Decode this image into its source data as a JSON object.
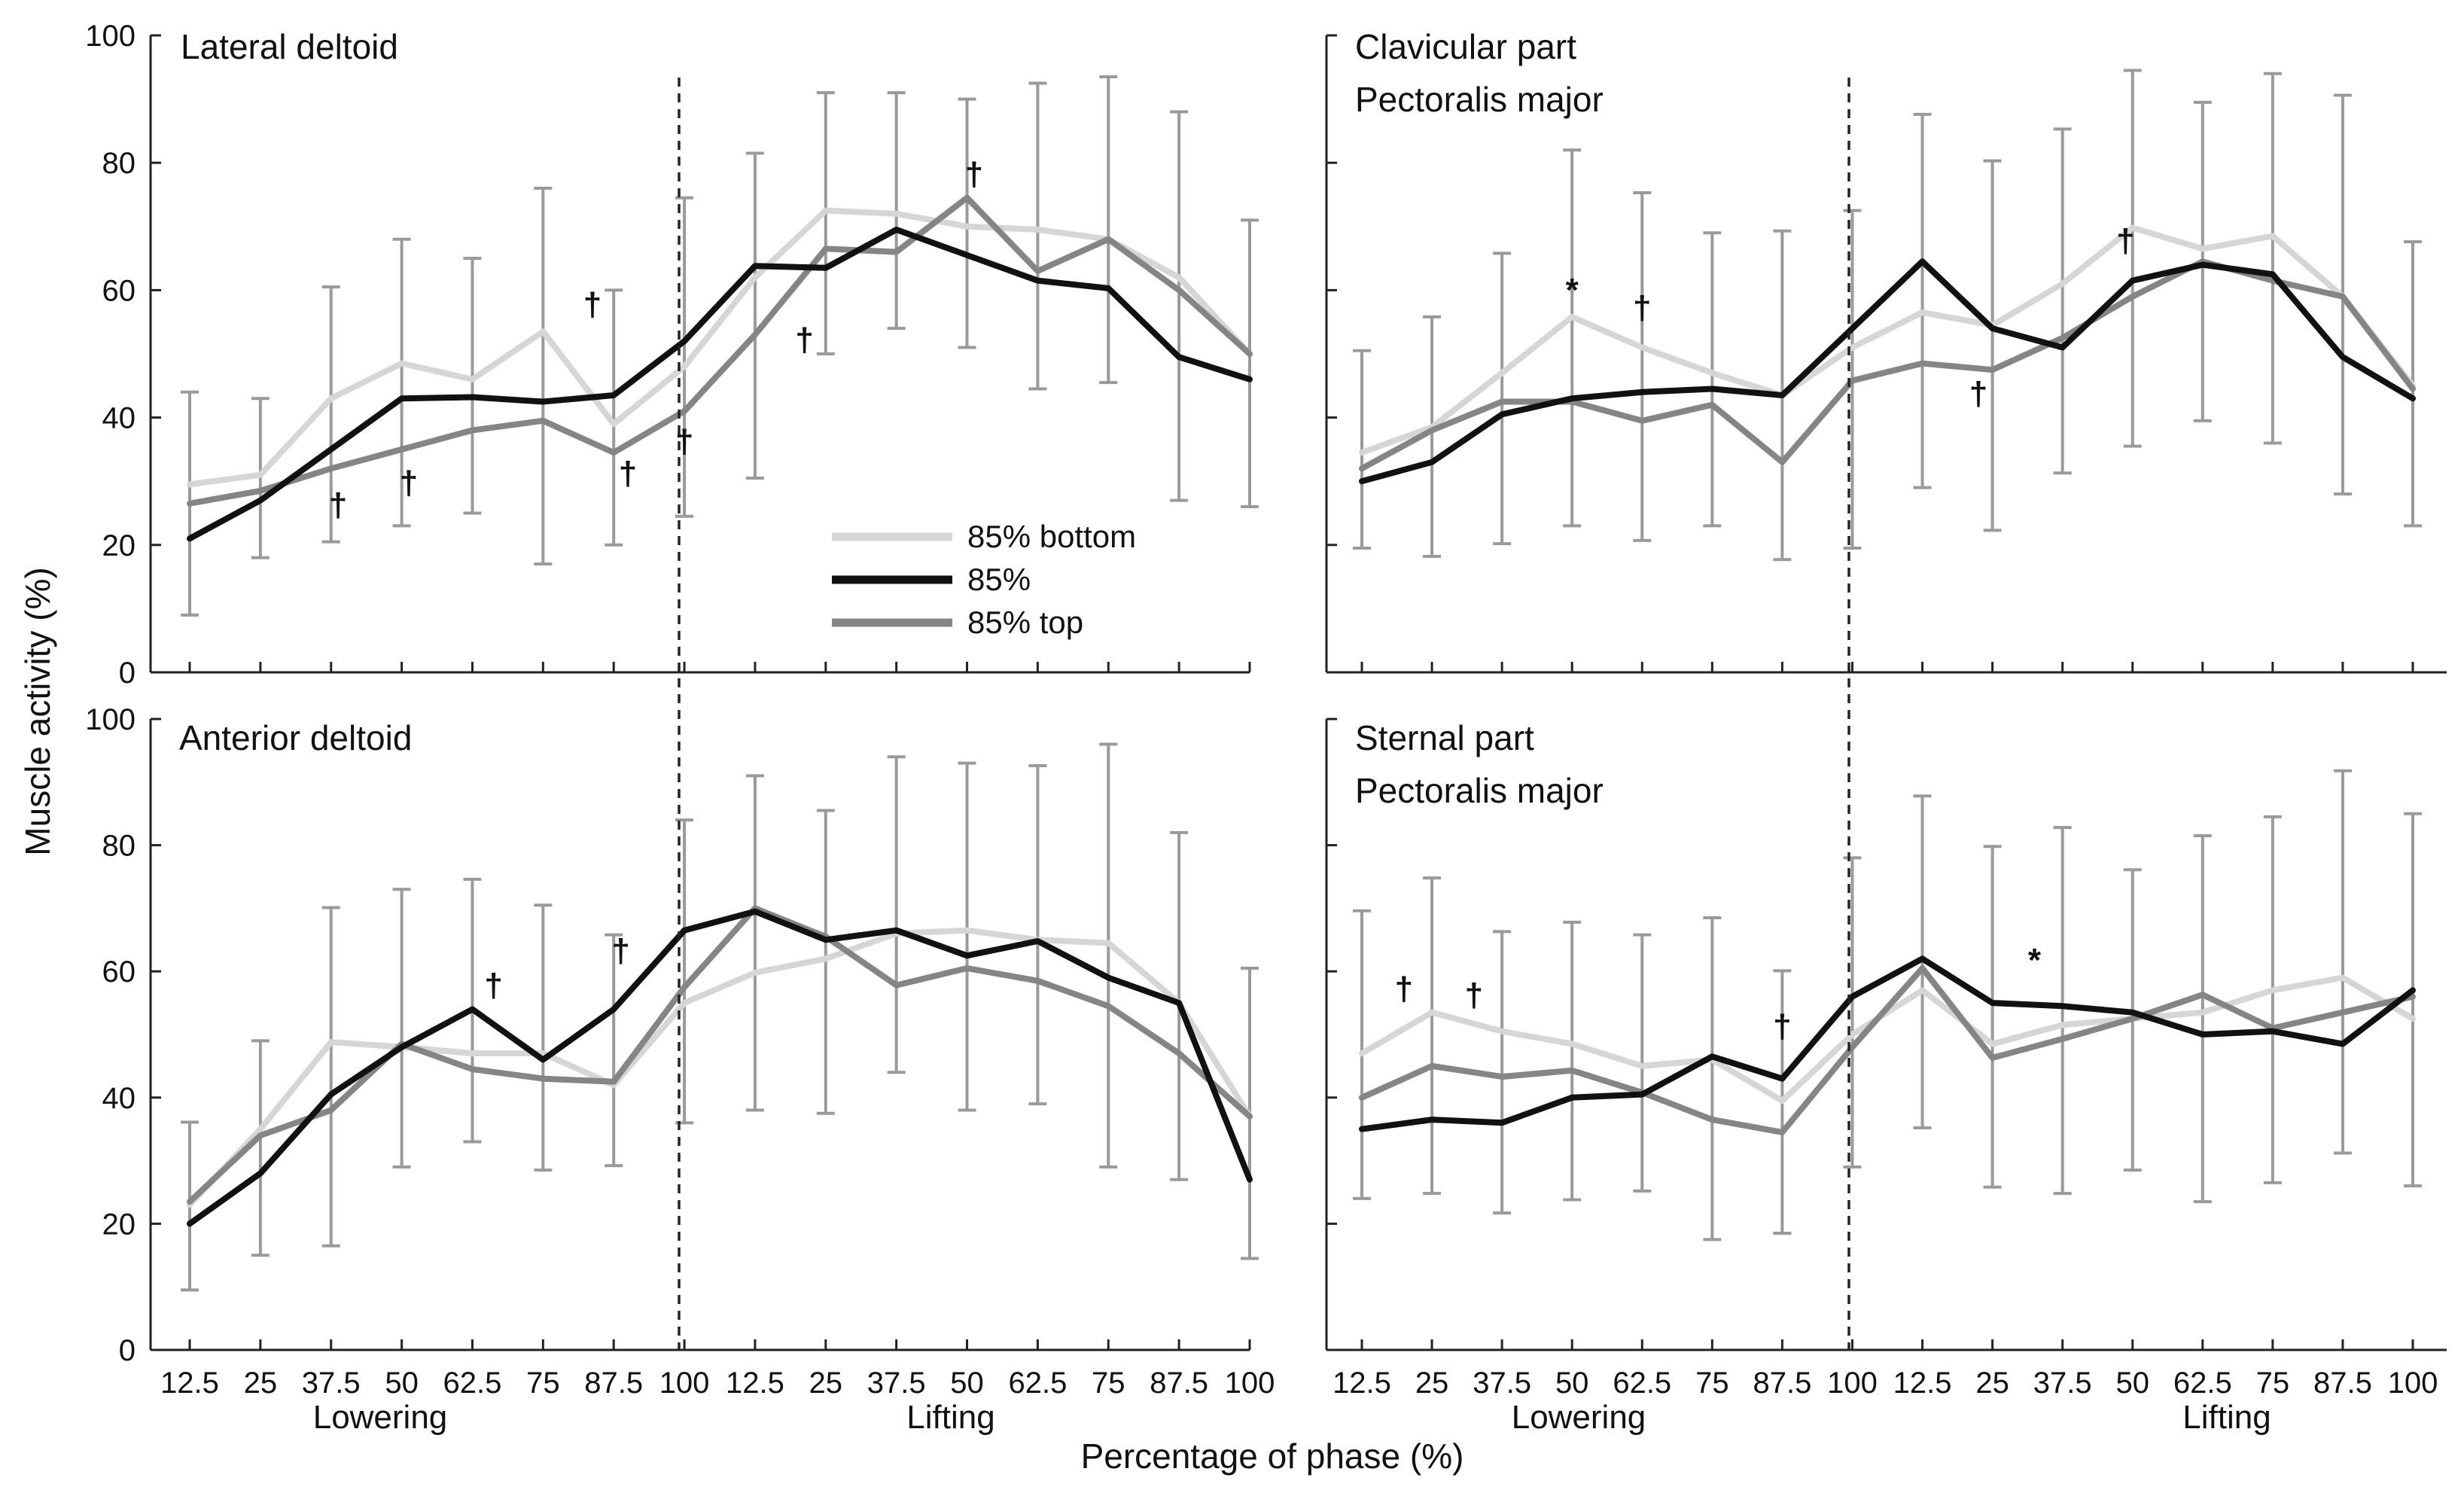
{
  "chart_data": {
    "type": "line",
    "ylabel": "Muscle activity (%)",
    "xlabel": "Percentage of phase (%)",
    "ylim": [
      0,
      100
    ],
    "yticks": [
      0,
      20,
      40,
      60,
      80,
      100
    ],
    "x_tick_labels": [
      "12.5",
      "25",
      "37.5",
      "50",
      "62.5",
      "75",
      "87.5",
      "100",
      "12.5",
      "25",
      "37.5",
      "50",
      "62.5",
      "75",
      "87.5",
      "100"
    ],
    "phase_labels": [
      "Lowering",
      "Lifting"
    ],
    "series_styles": [
      {
        "name": "85% bottom",
        "color": "#d6d6d6"
      },
      {
        "name": "85%",
        "color": "#111111"
      },
      {
        "name": "85% top",
        "color": "#858585"
      }
    ],
    "panels": [
      {
        "title_lines": [
          "Lateral deltoid"
        ],
        "series": [
          {
            "name": "85% bottom",
            "values": [
              29.5,
              31,
              43,
              48.5,
              46,
              53.5,
              39,
              48,
              62,
              72.5,
              72,
              70,
              69.5,
              68,
              62,
              50
            ]
          },
          {
            "name": "85%",
            "values": [
              21,
              27,
              35,
              43,
              43.2,
              42.5,
              43.5,
              52,
              63.8,
              63.5,
              69.5,
              65.5,
              61.5,
              60.3,
              49.5,
              46
            ]
          },
          {
            "name": "85% top",
            "values": [
              26.5,
              28.5,
              32,
              35,
              38,
              39.5,
              34.5,
              41,
              53,
              66.5,
              66,
              74.5,
              63,
              68,
              60,
              50
            ]
          }
        ],
        "error_bars": [
          {
            "center": 26.5,
            "half": 17.5
          },
          {
            "center": 30.5,
            "half": 12.5
          },
          {
            "center": 40.5,
            "half": 20
          },
          {
            "center": 45.5,
            "half": 22.5
          },
          {
            "center": 45,
            "half": 20
          },
          {
            "center": 46.5,
            "half": 29.5
          },
          {
            "center": 40,
            "half": 20
          },
          {
            "center": 49.5,
            "half": 25
          },
          {
            "center": 56,
            "half": 25.5
          },
          {
            "center": 70.5,
            "half": 20.5
          },
          {
            "center": 72.5,
            "half": 18.5
          },
          {
            "center": 70.5,
            "half": 19.5
          },
          {
            "center": 68.5,
            "half": 24
          },
          {
            "center": 69.5,
            "half": 24
          },
          {
            "center": 57.5,
            "half": 30.5
          },
          {
            "center": 48.5,
            "half": 22.5
          }
        ],
        "markers": [
          {
            "text": "†",
            "index": 2.1,
            "value": 24.5
          },
          {
            "text": "†",
            "index": 3.1,
            "value": 28
          },
          {
            "text": "†",
            "index": 5.7,
            "value": 56
          },
          {
            "text": "†",
            "index": 6.2,
            "value": 29.5
          },
          {
            "text": "†",
            "index": 7.0,
            "value": 34.5
          },
          {
            "text": "†",
            "index": 8.7,
            "value": 50.5
          },
          {
            "text": "†",
            "index": 11.1,
            "value": 76.5
          }
        ]
      },
      {
        "title_lines": [
          "Clavicular part",
          "Pectoralis major"
        ],
        "series": [
          {
            "name": "85% bottom",
            "values": [
              34.5,
              38.5,
              47,
              55.8,
              51,
              47,
              43.5,
              51,
              56.5,
              54.5,
              61,
              69.8,
              66.5,
              68.5,
              59,
              45
            ]
          },
          {
            "name": "85%",
            "values": [
              30,
              33,
              40.5,
              43,
              44,
              44.5,
              43.5,
              54,
              64.5,
              54,
              51,
              61.5,
              64,
              62.5,
              49.5,
              43
            ]
          },
          {
            "name": "85% top",
            "values": [
              32,
              38,
              42.5,
              42.5,
              39.5,
              42,
              33,
              45.8,
              48.5,
              47.5,
              52.5,
              59,
              64.5,
              61.5,
              59,
              44.5
            ]
          }
        ],
        "error_bars": [
          {
            "center": 35,
            "half": 15.5
          },
          {
            "center": 37,
            "half": 18.8
          },
          {
            "center": 43,
            "half": 22.8
          },
          {
            "center": 52.5,
            "half": 29.5
          },
          {
            "center": 48,
            "half": 27.3
          },
          {
            "center": 46,
            "half": 23
          },
          {
            "center": 43.5,
            "half": 25.8
          },
          {
            "center": 46,
            "half": 26.5
          },
          {
            "center": 58.3,
            "half": 29.3
          },
          {
            "center": 51.3,
            "half": 29
          },
          {
            "center": 58.3,
            "half": 27
          },
          {
            "center": 65,
            "half": 29.5
          },
          {
            "center": 64.5,
            "half": 25
          },
          {
            "center": 65,
            "half": 29
          },
          {
            "center": 59.3,
            "half": 31.3
          },
          {
            "center": 45.3,
            "half": 22.3
          }
        ],
        "markers": [
          {
            "text": "*",
            "index": 3.0,
            "value": 58.3
          },
          {
            "text": "†",
            "index": 4.0,
            "value": 55.5
          },
          {
            "text": "†",
            "index": 8.8,
            "value": 42
          },
          {
            "text": "†",
            "index": 10.9,
            "value": 66
          }
        ]
      },
      {
        "title_lines": [
          "Anterior deltoid"
        ],
        "series": [
          {
            "name": "85% bottom",
            "values": [
              23,
              35,
              48.8,
              48,
              47,
              47,
              42,
              55,
              59.8,
              62,
              66,
              66.5,
              65,
              64.5,
              55,
              37
            ]
          },
          {
            "name": "85%",
            "values": [
              20,
              28,
              40.5,
              48,
              54,
              46,
              54,
              66.5,
              69.5,
              65,
              66.5,
              62.5,
              64.8,
              59,
              55,
              27
            ]
          },
          {
            "name": "85% top",
            "values": [
              23.5,
              34,
              38,
              48.5,
              44.5,
              43,
              42.5,
              57.5,
              70,
              65.5,
              57.8,
              60.5,
              58.5,
              54.5,
              47,
              37
            ]
          }
        ],
        "error_bars": [
          {
            "center": 22.8,
            "half": 13.3
          },
          {
            "center": 32,
            "half": 17
          },
          {
            "center": 43.3,
            "half": 26.8
          },
          {
            "center": 51,
            "half": 22
          },
          {
            "center": 53.8,
            "half": 20.8
          },
          {
            "center": 49.5,
            "half": 21
          },
          {
            "center": 47.5,
            "half": 18.3
          },
          {
            "center": 60,
            "half": 24
          },
          {
            "center": 64.5,
            "half": 26.5
          },
          {
            "center": 61.5,
            "half": 24
          },
          {
            "center": 69,
            "half": 25
          },
          {
            "center": 65.5,
            "half": 27.5
          },
          {
            "center": 65.8,
            "half": 26.8
          },
          {
            "center": 62.5,
            "half": 33.5
          },
          {
            "center": 54.5,
            "half": 27.5
          },
          {
            "center": 37.5,
            "half": 23
          }
        ],
        "markers": [
          {
            "text": "†",
            "index": 4.3,
            "value": 56
          },
          {
            "text": "†",
            "index": 6.1,
            "value": 61.5
          }
        ]
      },
      {
        "title_lines": [
          "Sternal part",
          "Pectoralis major"
        ],
        "series": [
          {
            "name": "85% bottom",
            "values": [
              47,
              53.5,
              50.5,
              48.5,
              45,
              46,
              39.5,
              50,
              57,
              48.5,
              51.5,
              52.5,
              53.5,
              57,
              59,
              52.5
            ]
          },
          {
            "name": "85%",
            "values": [
              35,
              36.5,
              36,
              40,
              40.5,
              46.5,
              43,
              56,
              62,
              55,
              54.5,
              53.5,
              50,
              50.5,
              48.5,
              57
            ]
          },
          {
            "name": "85% top",
            "values": [
              40,
              45,
              43.3,
              44.3,
              40.8,
              36.5,
              34.5,
              48,
              60.5,
              46.3,
              49.3,
              52.5,
              56.3,
              51,
              53.5,
              56
            ]
          }
        ],
        "error_bars": [
          {
            "center": 46.8,
            "half": 22.8
          },
          {
            "center": 49.8,
            "half": 25
          },
          {
            "center": 44,
            "half": 22.3
          },
          {
            "center": 45.8,
            "half": 22
          },
          {
            "center": 45.5,
            "half": 20.3
          },
          {
            "center": 43,
            "half": 25.5
          },
          {
            "center": 39.3,
            "half": 20.8
          },
          {
            "center": 53.5,
            "half": 24.5
          },
          {
            "center": 61.5,
            "half": 26.3
          },
          {
            "center": 52.8,
            "half": 27
          },
          {
            "center": 53.8,
            "half": 29
          },
          {
            "center": 52.3,
            "half": 23.8
          },
          {
            "center": 52.5,
            "half": 29
          },
          {
            "center": 55.5,
            "half": 29
          },
          {
            "center": 61.5,
            "half": 30.3
          },
          {
            "center": 55.5,
            "half": 29.5
          }
        ],
        "markers": [
          {
            "text": "†",
            "index": 0.6,
            "value": 55.5
          },
          {
            "text": "†",
            "index": 1.6,
            "value": 54.5
          },
          {
            "text": "†",
            "index": 6.0,
            "value": 49.5
          },
          {
            "text": "*",
            "index": 9.6,
            "value": 60
          }
        ]
      }
    ]
  }
}
